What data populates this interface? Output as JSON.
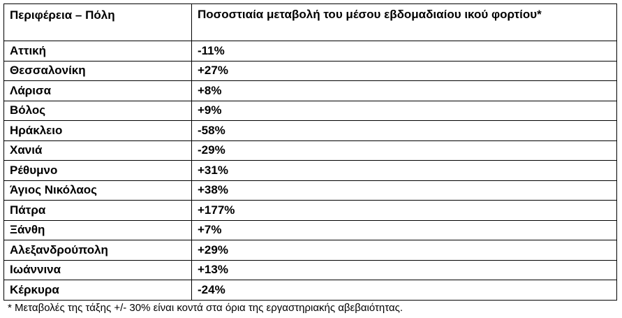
{
  "table": {
    "headers": [
      "Περιφέρεια – Πόλη",
      "Ποσοστιαία μεταβολή του μέσου εβδομαδιαίου ικού φορτίου*"
    ],
    "rows": [
      {
        "city": "Αττική",
        "change": "-11%"
      },
      {
        "city": "Θεσσαλονίκη",
        "change": "+27%"
      },
      {
        "city": "Λάρισα",
        "change": "+8%"
      },
      {
        "city": "Βόλος",
        "change": "+9%"
      },
      {
        "city": "Ηράκλειο",
        "change": "-58%"
      },
      {
        "city": "Χανιά",
        "change": "-29%"
      },
      {
        "city": "Ρέθυμνο",
        "change": "+31%"
      },
      {
        "city": "Άγιος Νικόλαος",
        "change": "+38%"
      },
      {
        "city": "Πάτρα",
        "change": "+177%"
      },
      {
        "city": "Ξάνθη",
        "change": "+7%"
      },
      {
        "city": "Αλεξανδρούπολη",
        "change": "+29%"
      },
      {
        "city": "Ιωάννινα",
        "change": "+13%"
      },
      {
        "city": "Κέρκυρα",
        "change": "-24%"
      }
    ]
  },
  "footnote": "* Μεταβολές της τάξης +/- 30% είναι κοντά στα όρια της εργαστηριακής αβεβαιότητας."
}
